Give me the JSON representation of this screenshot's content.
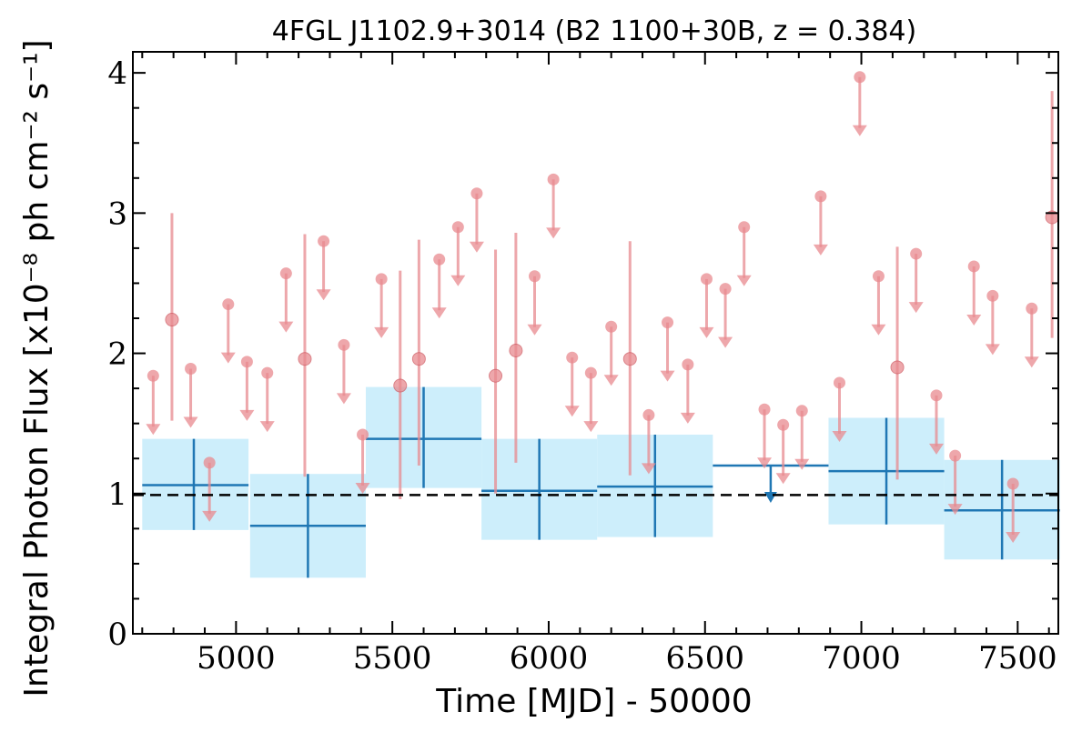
{
  "chart_data": {
    "type": "scatter",
    "title": "4FGL J1102.9+3014 (B2 1100+30B, z = 0.384)",
    "xlabel": "Time [MJD] - 50000",
    "ylabel": "Integral Photon Flux [x10⁻⁸ ph cm⁻² s⁻¹]",
    "xlim": [
      4670,
      7630
    ],
    "ylim": [
      0,
      4.15
    ],
    "x_ticks": [
      5000,
      5500,
      6000,
      6500,
      7000,
      7500
    ],
    "y_ticks": [
      0,
      1,
      2,
      3,
      4
    ],
    "reference_line": {
      "y": 0.99,
      "style": "dashed",
      "color": "#000000"
    },
    "colors": {
      "long_bins": "#1f77b4",
      "long_bins_band": "#cdeefb",
      "short_bins": "#e88a8f"
    },
    "series": [
      {
        "points": [
          {
            "x": 4865,
            "y": 1.06,
            "x_lo": 4700,
            "x_hi": 5040,
            "y_lo": 0.74,
            "y_hi": 1.39,
            "upper_limit": false
          },
          {
            "x": 5230,
            "y": 0.77,
            "x_lo": 5045,
            "x_hi": 5415,
            "y_lo": 0.4,
            "y_hi": 1.14,
            "upper_limit": false
          },
          {
            "x": 5600,
            "y": 1.39,
            "x_lo": 5415,
            "x_hi": 5785,
            "y_lo": 1.04,
            "y_hi": 1.76,
            "upper_limit": false
          },
          {
            "x": 5970,
            "y": 1.02,
            "x_lo": 5785,
            "x_hi": 6155,
            "y_lo": 0.67,
            "y_hi": 1.39,
            "upper_limit": false
          },
          {
            "x": 6340,
            "y": 1.05,
            "x_lo": 6155,
            "x_hi": 6525,
            "y_lo": 0.69,
            "y_hi": 1.42,
            "upper_limit": false
          },
          {
            "x": 6710,
            "y": 1.2,
            "x_lo": 6525,
            "x_hi": 6895,
            "upper_limit": true
          },
          {
            "x": 7080,
            "y": 1.16,
            "x_lo": 6895,
            "x_hi": 7265,
            "y_lo": 0.78,
            "y_hi": 1.54,
            "upper_limit": false
          },
          {
            "x": 7450,
            "y": 0.88,
            "x_lo": 7265,
            "x_hi": 7635,
            "y_lo": 0.53,
            "y_hi": 1.24,
            "upper_limit": false
          }
        ]
      },
      {
        "points": [
          {
            "x": 4735,
            "y": 1.84,
            "upper_limit": true
          },
          {
            "x": 4795,
            "y": 2.24,
            "y_lo": 1.52,
            "y_hi": 3.0,
            "upper_limit": false
          },
          {
            "x": 4855,
            "y": 1.89,
            "upper_limit": true
          },
          {
            "x": 4915,
            "y": 1.22,
            "upper_limit": true
          },
          {
            "x": 4975,
            "y": 2.35,
            "upper_limit": true
          },
          {
            "x": 5035,
            "y": 1.94,
            "upper_limit": true
          },
          {
            "x": 5100,
            "y": 1.86,
            "upper_limit": true
          },
          {
            "x": 5160,
            "y": 2.57,
            "upper_limit": true
          },
          {
            "x": 5220,
            "y": 1.96,
            "y_lo": 1.12,
            "y_hi": 2.85,
            "upper_limit": false
          },
          {
            "x": 5280,
            "y": 2.8,
            "upper_limit": true
          },
          {
            "x": 5345,
            "y": 2.06,
            "upper_limit": true
          },
          {
            "x": 5405,
            "y": 1.42,
            "upper_limit": true
          },
          {
            "x": 5465,
            "y": 2.53,
            "upper_limit": true
          },
          {
            "x": 5525,
            "y": 1.77,
            "y_lo": 0.96,
            "y_hi": 2.59,
            "upper_limit": false
          },
          {
            "x": 5585,
            "y": 1.96,
            "y_lo": 1.2,
            "y_hi": 2.81,
            "upper_limit": false
          },
          {
            "x": 5650,
            "y": 2.67,
            "upper_limit": true
          },
          {
            "x": 5710,
            "y": 2.9,
            "upper_limit": true
          },
          {
            "x": 5770,
            "y": 3.14,
            "upper_limit": true
          },
          {
            "x": 5830,
            "y": 1.84,
            "y_lo": 1.0,
            "y_hi": 2.74,
            "upper_limit": false
          },
          {
            "x": 5895,
            "y": 2.02,
            "y_lo": 1.22,
            "y_hi": 2.86,
            "upper_limit": false
          },
          {
            "x": 5955,
            "y": 2.55,
            "upper_limit": true
          },
          {
            "x": 6015,
            "y": 3.24,
            "upper_limit": true
          },
          {
            "x": 6075,
            "y": 1.97,
            "upper_limit": true
          },
          {
            "x": 6135,
            "y": 1.86,
            "upper_limit": true
          },
          {
            "x": 6200,
            "y": 2.19,
            "upper_limit": true
          },
          {
            "x": 6260,
            "y": 1.96,
            "y_lo": 1.13,
            "y_hi": 2.8,
            "upper_limit": false
          },
          {
            "x": 6320,
            "y": 1.56,
            "upper_limit": true
          },
          {
            "x": 6380,
            "y": 2.22,
            "upper_limit": true
          },
          {
            "x": 6445,
            "y": 1.92,
            "upper_limit": true
          },
          {
            "x": 6505,
            "y": 2.53,
            "upper_limit": true
          },
          {
            "x": 6565,
            "y": 2.46,
            "upper_limit": true
          },
          {
            "x": 6625,
            "y": 2.9,
            "upper_limit": true
          },
          {
            "x": 6690,
            "y": 1.6,
            "upper_limit": true
          },
          {
            "x": 6750,
            "y": 1.49,
            "upper_limit": true
          },
          {
            "x": 6810,
            "y": 1.59,
            "upper_limit": true
          },
          {
            "x": 6870,
            "y": 3.12,
            "upper_limit": true
          },
          {
            "x": 6930,
            "y": 1.79,
            "upper_limit": true
          },
          {
            "x": 6995,
            "y": 3.97,
            "upper_limit": true
          },
          {
            "x": 7055,
            "y": 2.55,
            "upper_limit": true
          },
          {
            "x": 7115,
            "y": 1.9,
            "y_lo": 1.1,
            "y_hi": 2.76,
            "upper_limit": false
          },
          {
            "x": 7175,
            "y": 2.71,
            "upper_limit": true
          },
          {
            "x": 7240,
            "y": 1.7,
            "upper_limit": true
          },
          {
            "x": 7300,
            "y": 1.27,
            "upper_limit": true
          },
          {
            "x": 7360,
            "y": 2.62,
            "upper_limit": true
          },
          {
            "x": 7420,
            "y": 2.41,
            "upper_limit": true
          },
          {
            "x": 7485,
            "y": 1.07,
            "upper_limit": true
          },
          {
            "x": 7545,
            "y": 2.32,
            "upper_limit": true
          },
          {
            "x": 7610,
            "y": 2.97,
            "y_lo": 2.11,
            "y_hi": 3.87,
            "upper_limit": false
          }
        ]
      }
    ]
  }
}
